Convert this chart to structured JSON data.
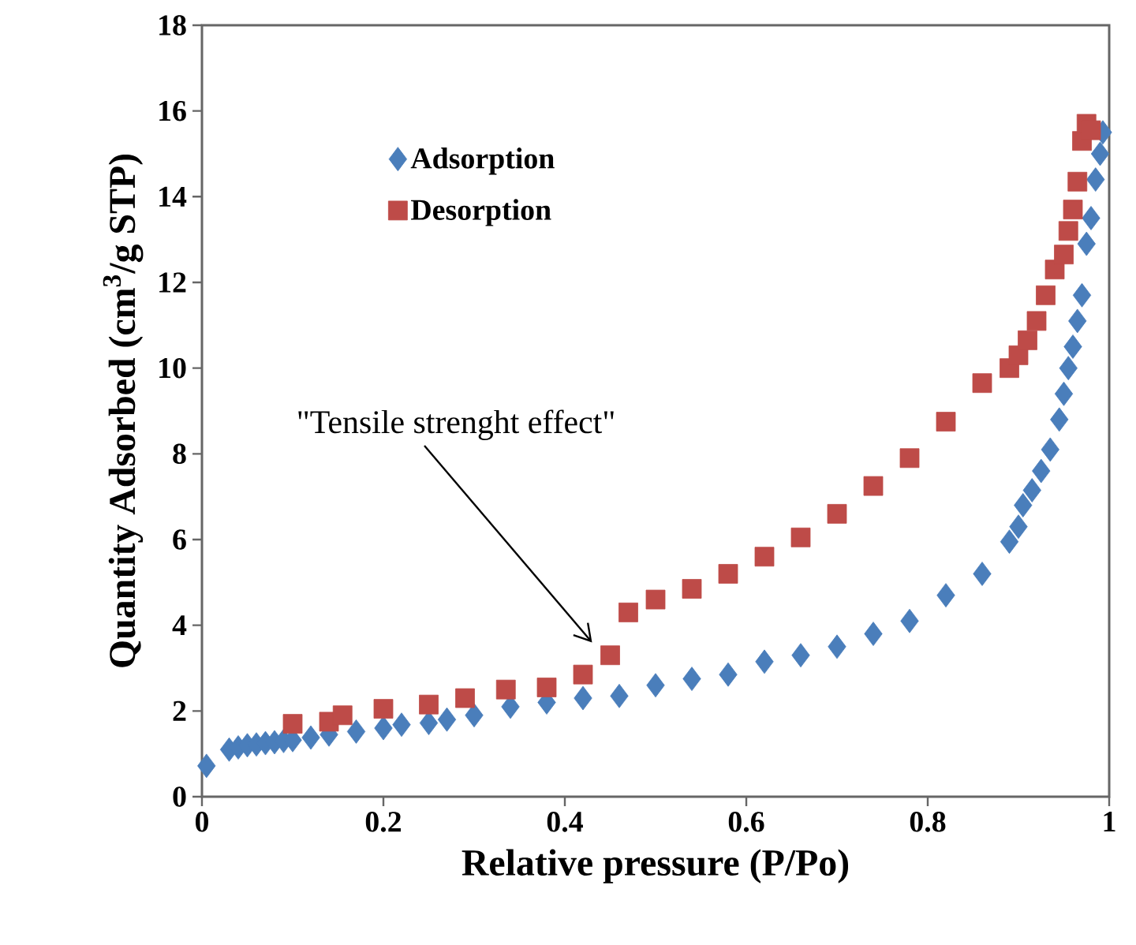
{
  "chart_data": {
    "type": "scatter",
    "xlabel": "Relative pressure (P/Po)",
    "ylabel": "Quantity Adsorbed (cm$^{3}$/g STP)",
    "xlim": [
      0,
      1
    ],
    "ylim": [
      0,
      18
    ],
    "xticks": [
      0,
      0.2,
      0.4,
      0.6,
      0.8,
      1
    ],
    "yticks": [
      0,
      2,
      4,
      6,
      8,
      10,
      12,
      14,
      16,
      18
    ],
    "grid": false,
    "legend": "top left",
    "annotations": [
      "\"Tensile strenght effect\""
    ],
    "series": [
      {
        "name": "Adsorption",
        "color": "#4a7ebb",
        "marker": "diamond",
        "x": [
          0.005,
          0.03,
          0.04,
          0.05,
          0.06,
          0.07,
          0.08,
          0.09,
          0.1,
          0.12,
          0.14,
          0.17,
          0.2,
          0.22,
          0.25,
          0.27,
          0.3,
          0.34,
          0.38,
          0.42,
          0.46,
          0.5,
          0.54,
          0.58,
          0.62,
          0.66,
          0.7,
          0.74,
          0.78,
          0.82,
          0.86,
          0.89,
          0.9,
          0.905,
          0.915,
          0.925,
          0.935,
          0.945,
          0.95,
          0.955,
          0.96,
          0.965,
          0.97,
          0.975,
          0.98,
          0.985,
          0.99,
          0.993
        ],
        "values": [
          0.72,
          1.1,
          1.15,
          1.2,
          1.22,
          1.25,
          1.27,
          1.3,
          1.32,
          1.38,
          1.45,
          1.52,
          1.6,
          1.68,
          1.72,
          1.8,
          1.9,
          2.1,
          2.2,
          2.3,
          2.35,
          2.6,
          2.75,
          2.85,
          3.15,
          3.3,
          3.5,
          3.8,
          4.1,
          4.7,
          5.2,
          5.95,
          6.3,
          6.8,
          7.15,
          7.6,
          8.1,
          8.8,
          9.4,
          10.0,
          10.5,
          11.1,
          11.7,
          12.9,
          13.5,
          14.4,
          15.0,
          15.5
        ]
      },
      {
        "name": "Desorption",
        "color": "#be4b48",
        "marker": "square",
        "x": [
          0.1,
          0.14,
          0.155,
          0.2,
          0.25,
          0.29,
          0.335,
          0.38,
          0.42,
          0.45,
          0.47,
          0.5,
          0.54,
          0.58,
          0.62,
          0.66,
          0.7,
          0.74,
          0.78,
          0.82,
          0.86,
          0.89,
          0.9,
          0.91,
          0.92,
          0.93,
          0.94,
          0.95,
          0.955,
          0.96,
          0.965,
          0.97,
          0.975,
          0.98
        ],
        "values": [
          1.7,
          1.75,
          1.9,
          2.05,
          2.15,
          2.3,
          2.5,
          2.55,
          2.85,
          3.3,
          4.3,
          4.6,
          4.85,
          5.2,
          5.6,
          6.05,
          6.6,
          7.25,
          7.9,
          8.75,
          9.65,
          10.0,
          10.3,
          10.65,
          11.1,
          11.7,
          12.3,
          12.65,
          13.2,
          13.7,
          14.35,
          15.3,
          15.7,
          15.55
        ]
      }
    ]
  }
}
